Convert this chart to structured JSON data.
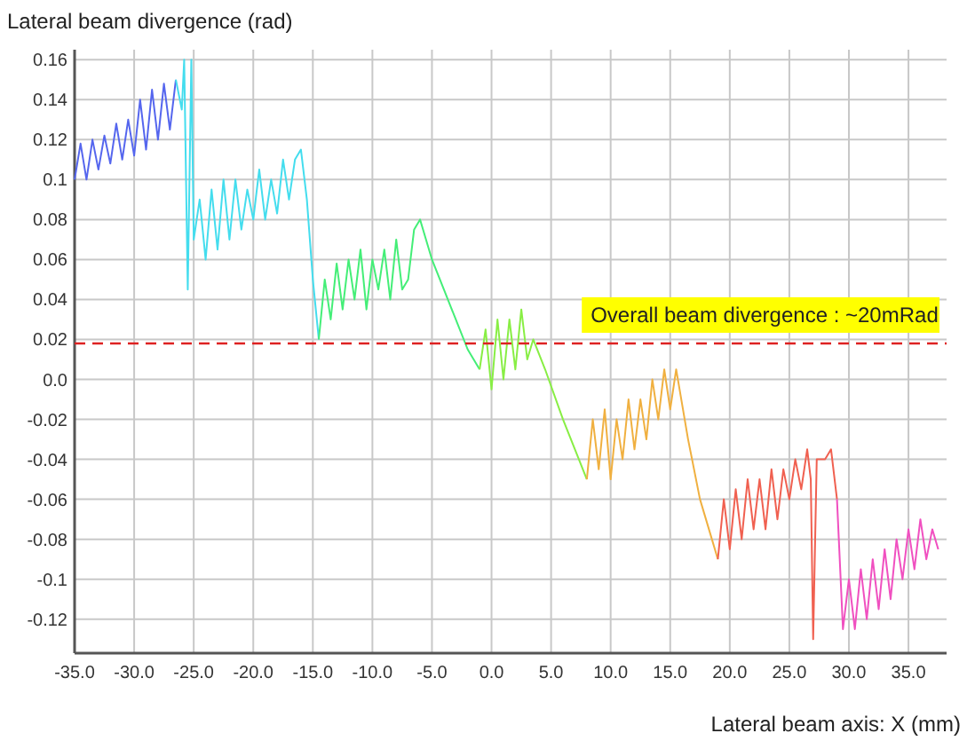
{
  "chart_data": {
    "type": "line",
    "xlabel": "Lateral beam axis: X (mm)",
    "ylabel": "Lateral beam divergence (rad)",
    "xlim": [
      -35,
      38.2
    ],
    "ylim": [
      -0.137,
      0.165
    ],
    "xticks": [
      {
        "value": -35,
        "label": "-35.0"
      },
      {
        "value": -30,
        "label": "-30.0"
      },
      {
        "value": -25,
        "label": "-25.0"
      },
      {
        "value": -20,
        "label": "-20.0"
      },
      {
        "value": -15,
        "label": "-15.0"
      },
      {
        "value": -10,
        "label": "-10.0"
      },
      {
        "value": -5,
        "label": "-5.0"
      },
      {
        "value": 0,
        "label": "0.0"
      },
      {
        "value": 5,
        "label": "5.0"
      },
      {
        "value": 10,
        "label": "10.0"
      },
      {
        "value": 15,
        "label": "15.0"
      },
      {
        "value": 20,
        "label": "20.0"
      },
      {
        "value": 25,
        "label": "25.0"
      },
      {
        "value": 30,
        "label": "30.0"
      },
      {
        "value": 35,
        "label": "35.0"
      }
    ],
    "yticks": [
      0.16,
      0.14,
      0.12,
      0.1,
      0.08,
      0.06,
      0.04,
      0.02,
      {
        "value": 0,
        "label": "0.0"
      },
      -0.02,
      -0.04,
      -0.06,
      -0.08,
      -0.1,
      -0.12
    ],
    "grid": true,
    "marker": "none",
    "line_style": "solid",
    "ref_lines": [
      {
        "axis": "y",
        "value": 0.018,
        "label": "Overall beam divergence : ~20mRad",
        "color": "#dd2222",
        "line_style": "dashed"
      }
    ],
    "series": [
      {
        "color": "#5566ee",
        "x": [
          -35,
          -34.5,
          -34,
          -33.5,
          -33,
          -32.5,
          -32,
          -31.5,
          -31,
          -30.5,
          -30,
          -29.5,
          -29,
          -28.5,
          -28,
          -27.5,
          -27,
          -26.5
        ],
        "values": [
          0.1,
          0.118,
          0.1,
          0.12,
          0.105,
          0.122,
          0.108,
          0.128,
          0.11,
          0.13,
          0.112,
          0.14,
          0.115,
          0.145,
          0.12,
          0.148,
          0.125,
          0.15
        ]
      },
      {
        "color": "#44ddee",
        "x": [
          -26.5,
          -26,
          -25.8,
          -25.5,
          -25.2,
          -25,
          -24.5,
          -24,
          -23.5,
          -23,
          -22.5,
          -22,
          -21.5,
          -21,
          -20.5,
          -20,
          -19.5,
          -19,
          -18.5,
          -18,
          -17.5,
          -17,
          -16.5,
          -16,
          -15.5,
          -15,
          -14.5
        ],
        "values": [
          0.15,
          0.135,
          0.16,
          0.045,
          0.16,
          0.07,
          0.09,
          0.06,
          0.095,
          0.065,
          0.1,
          0.07,
          0.1,
          0.075,
          0.095,
          0.08,
          0.105,
          0.08,
          0.1,
          0.083,
          0.11,
          0.09,
          0.11,
          0.115,
          0.09,
          0.05,
          0.02
        ]
      },
      {
        "color": "#44ee77",
        "x": [
          -14.5,
          -14,
          -13.5,
          -13,
          -12.5,
          -12,
          -11.5,
          -11,
          -10.5,
          -10,
          -9.5,
          -9,
          -8.5,
          -8,
          -7.5,
          -7,
          -6.5,
          -6,
          -5,
          -4,
          -3,
          -2,
          -1
        ],
        "values": [
          0.02,
          0.05,
          0.03,
          0.058,
          0.035,
          0.06,
          0.04,
          0.065,
          0.035,
          0.06,
          0.045,
          0.065,
          0.04,
          0.07,
          0.045,
          0.05,
          0.075,
          0.08,
          0.06,
          0.045,
          0.03,
          0.015,
          0.005
        ]
      },
      {
        "color": "#88ee44",
        "x": [
          -1,
          -0.5,
          0,
          0.5,
          1,
          1.5,
          2,
          2.5,
          3,
          3.5,
          4.5,
          6,
          8
        ],
        "values": [
          0.005,
          0.025,
          -0.005,
          0.03,
          0,
          0.03,
          0.005,
          0.035,
          0.01,
          0.02,
          0.005,
          -0.02,
          -0.05
        ]
      },
      {
        "color": "#f0b040",
        "x": [
          8,
          8.5,
          9,
          9.5,
          10,
          10.5,
          11,
          11.5,
          12,
          12.5,
          13,
          13.5,
          14,
          14.5,
          15,
          15.5,
          16.5,
          17.5,
          18.5,
          19
        ],
        "values": [
          -0.05,
          -0.02,
          -0.045,
          -0.015,
          -0.05,
          -0.02,
          -0.04,
          -0.01,
          -0.035,
          -0.01,
          -0.03,
          0,
          -0.02,
          0.005,
          -0.015,
          0.005,
          -0.03,
          -0.06,
          -0.08,
          -0.09
        ]
      },
      {
        "color": "#f06050",
        "x": [
          19,
          19.5,
          20,
          20.5,
          21,
          21.5,
          22,
          22.5,
          23,
          23.5,
          24,
          24.5,
          25,
          25.5,
          26,
          26.5,
          26.8,
          27,
          27.3,
          28,
          28.5,
          29
        ],
        "values": [
          -0.09,
          -0.06,
          -0.085,
          -0.055,
          -0.08,
          -0.05,
          -0.075,
          -0.05,
          -0.075,
          -0.045,
          -0.07,
          -0.045,
          -0.06,
          -0.04,
          -0.055,
          -0.035,
          -0.05,
          -0.13,
          -0.04,
          -0.04,
          -0.035,
          -0.06
        ]
      },
      {
        "color": "#f050c0",
        "x": [
          29,
          29.5,
          30,
          30.5,
          31,
          31.5,
          32,
          32.5,
          33,
          33.5,
          34,
          34.5,
          35,
          35.5,
          36,
          36.5,
          37,
          37.5
        ],
        "values": [
          -0.06,
          -0.125,
          -0.1,
          -0.125,
          -0.095,
          -0.12,
          -0.09,
          -0.115,
          -0.085,
          -0.11,
          -0.08,
          -0.1,
          -0.075,
          -0.095,
          -0.07,
          -0.09,
          -0.075,
          -0.085
        ]
      }
    ]
  }
}
